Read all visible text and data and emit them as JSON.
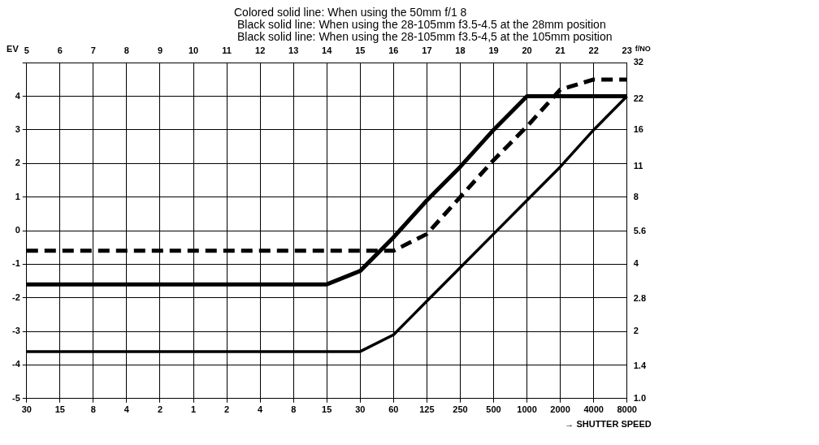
{
  "chart_data": {
    "type": "line",
    "annotations": [
      "Colored solid line: When using the 50mm f/1 8",
      "Black solid line: When using the 28-105mm f3.5-4.5 at the 28mm position",
      "Black solid line: When using the 28-105mm f3.5-4,5 at the 105mm position"
    ],
    "xlabel": "→ SHUTTER SPEED",
    "x2label": "EV",
    "y2label": "f/NO",
    "categories": [
      "30",
      "15",
      "8",
      "4",
      "2",
      "1",
      "2",
      "4",
      "8",
      "15",
      "30",
      "60",
      "125",
      "250",
      "500",
      "1000",
      "2000",
      "4000",
      "8000"
    ],
    "x2lim": [
      5,
      23
    ],
    "x2ticks": [
      5,
      6,
      7,
      8,
      9,
      10,
      11,
      12,
      13,
      14,
      15,
      16,
      17,
      18,
      19,
      20,
      21,
      22,
      23
    ],
    "ylim": [
      -5,
      5
    ],
    "yticks": [
      -5,
      -4,
      -3,
      -2,
      -1,
      0,
      1,
      2,
      3,
      4,
      {
        "value": 5,
        "label": null
      }
    ],
    "y2lim": [
      1,
      32
    ],
    "log": "y2",
    "y2ticks": [
      {
        "value": 1,
        "label": "1.0"
      },
      1.4,
      2,
      2.8,
      4,
      5.6,
      8,
      11,
      16,
      22,
      32
    ],
    "grid": true,
    "legend": false,
    "marker": "none",
    "series": [
      {
        "color": "#000000",
        "line_style": "solid",
        "values": [
          -1.6,
          -1.6,
          -1.6,
          -1.6,
          -1.6,
          -1.6,
          -1.6,
          -1.6,
          -1.6,
          -1.6,
          -1.2,
          -0.2,
          0.9,
          1.9,
          3.0,
          4,
          4,
          4,
          4
        ]
      },
      {
        "color": "#000000",
        "line_style": "dashed",
        "values": [
          -0.6,
          -0.6,
          -0.6,
          -0.6,
          -0.6,
          -0.6,
          -0.6,
          -0.6,
          -0.6,
          -0.6,
          -0.6,
          -0.6,
          -0.1,
          1.0,
          2.1,
          3.1,
          4.2,
          4.5,
          4.5
        ]
      },
      {
        "color": "#000000",
        "line_style": "solid",
        "values": [
          -3.6,
          -3.6,
          -3.6,
          -3.6,
          -3.6,
          -3.6,
          -3.6,
          -3.6,
          -3.6,
          -3.6,
          -3.6,
          -3.1,
          -2.1,
          -1.1,
          -0.1,
          0.9,
          1.9,
          3.0,
          4
        ]
      }
    ]
  }
}
